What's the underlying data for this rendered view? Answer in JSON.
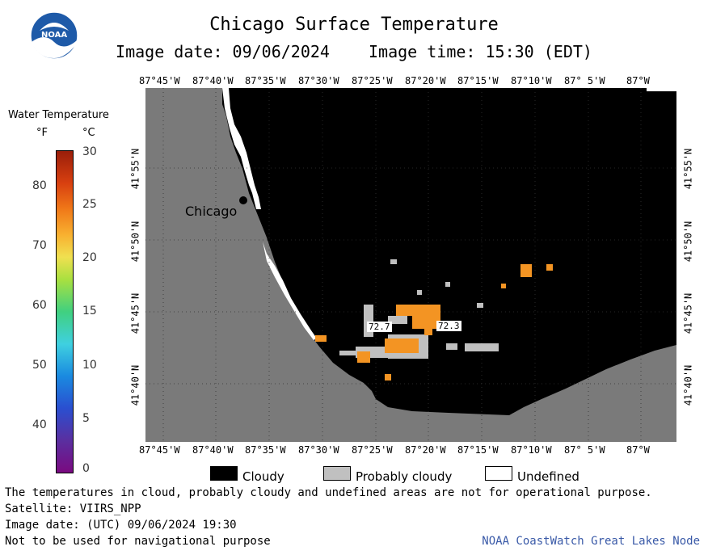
{
  "header": {
    "title": "Chicago Surface Temperature",
    "image_date": "Image date: 09/06/2024",
    "image_time": "Image time: 15:30 (EDT)"
  },
  "logo": {
    "text": "NOAA",
    "icon": "noaa-logo-icon"
  },
  "colorbar": {
    "title": "Water Temperature",
    "unit_f": "°F",
    "unit_c": "°C",
    "f_ticks": [
      "80",
      "70",
      "60",
      "50",
      "40"
    ],
    "c_ticks": [
      "30",
      "25",
      "20",
      "15",
      "10",
      "5",
      "0"
    ]
  },
  "map": {
    "lon_labels": [
      "87°45'W",
      "87°40'W",
      "87°35'W",
      "87°30'W",
      "87°25'W",
      "87°20'W",
      "87°15'W",
      "87°10'W",
      "87° 5'W",
      "87°W"
    ],
    "lat_labels": [
      "41°55'N",
      "41°50'N",
      "41°45'N",
      "41°40'N"
    ],
    "city": "Chicago",
    "temp_labels": [
      "72.7",
      "72.3"
    ],
    "colors": {
      "land": "#7a7a7a",
      "cloudy": "#000000",
      "probably_cloudy": "#c0c0c0",
      "undefined": "#ffffff",
      "warm_water": "#f39423"
    }
  },
  "legend": {
    "items": [
      {
        "label": "Cloudy",
        "color": "#000000"
      },
      {
        "label": "Probably cloudy",
        "color": "#c0c0c0"
      },
      {
        "label": "Undefined",
        "color": "#ffffff"
      }
    ]
  },
  "footer": {
    "line1": "The temperatures in cloud, probably cloudy and undefined areas are not for operational purpose.",
    "line2": "Satellite: VIIRS_NPP",
    "line3": "Image date: (UTC) 09/06/2024  19:30",
    "line4": "Not to be used for navigational purpose",
    "credit": "NOAA CoastWatch Great Lakes Node"
  }
}
